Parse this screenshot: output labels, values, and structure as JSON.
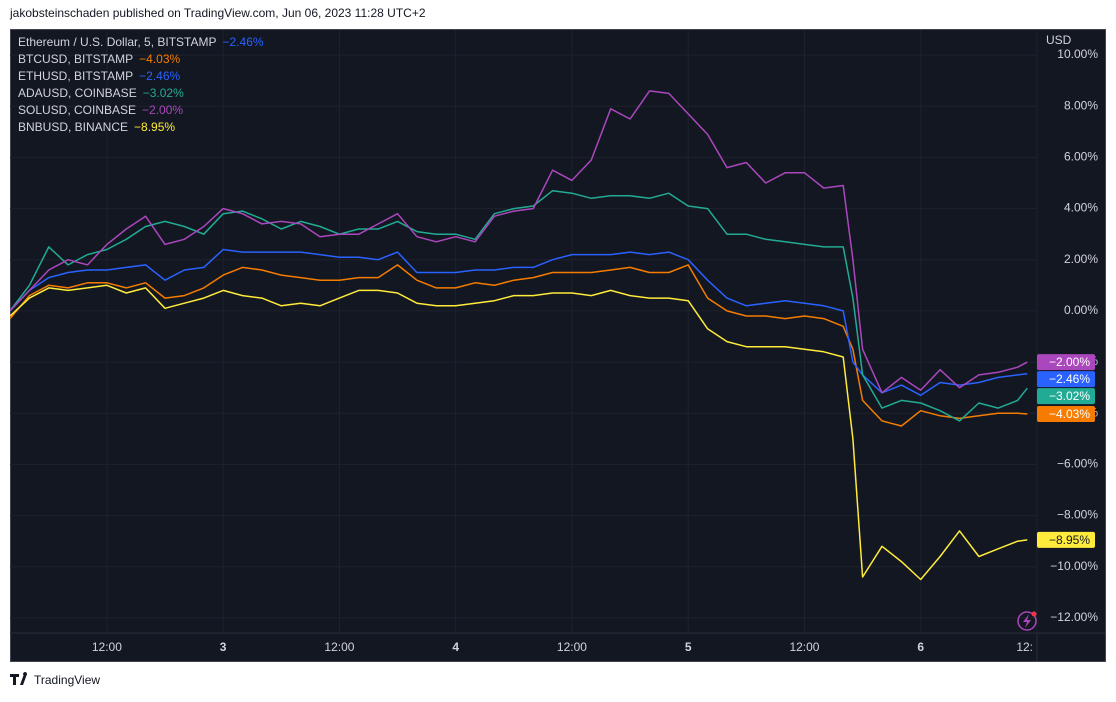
{
  "header": {
    "published": "jakobsteinschaden published on TradingView.com, Jun 06, 2023 11:28 UTC+2",
    "brand": "TradingView"
  },
  "chart_data": {
    "type": "line",
    "symbol": {
      "name": "Ethereum / U.S. Dollar, 5, BITSTAMP",
      "change_label": "−2.46%"
    },
    "y_unit": "USD",
    "x": [
      2,
      4,
      6,
      8,
      10,
      12,
      14,
      16,
      18,
      20,
      22,
      24,
      26,
      28,
      30,
      32,
      34,
      36,
      38,
      40,
      42,
      44,
      46,
      48,
      50,
      52,
      54,
      56,
      58,
      60,
      62,
      64,
      66,
      68,
      70,
      72,
      74,
      76,
      78,
      80,
      82,
      84,
      86,
      88,
      89,
      90,
      92,
      94,
      96,
      98,
      100,
      102,
      104,
      106,
      107
    ],
    "xlim": [
      2,
      108
    ],
    "xticks": [
      {
        "value": 12,
        "label": "12:00"
      },
      {
        "value": 24,
        "label": "3"
      },
      {
        "value": 36,
        "label": "12:00"
      },
      {
        "value": 48,
        "label": "4"
      },
      {
        "value": 60,
        "label": "12:00"
      },
      {
        "value": 72,
        "label": "5"
      },
      {
        "value": 84,
        "label": "12:00"
      },
      {
        "value": 96,
        "label": "6"
      },
      {
        "value": 108,
        "label": "12:"
      }
    ],
    "ylim": [
      -12.59,
      10.98
    ],
    "yticks": [
      {
        "value": 10,
        "label": "10.00%"
      },
      {
        "value": 8,
        "label": "8.00%"
      },
      {
        "value": 6,
        "label": "6.00%"
      },
      {
        "value": 4,
        "label": "4.00%"
      },
      {
        "value": 2,
        "label": "2.00%"
      },
      {
        "value": 0,
        "label": "0.00%"
      },
      {
        "value": -2,
        "label": "−2.00%"
      },
      {
        "value": -4,
        "label": "−4.00%"
      },
      {
        "value": -6,
        "label": "−6.00%"
      },
      {
        "value": -8,
        "label": "−8.00%"
      },
      {
        "value": -10,
        "label": "−10.00%"
      },
      {
        "value": -12,
        "label": "−12.00%"
      }
    ],
    "grid": true,
    "series": [
      {
        "name": "BTCUSD, BITSTAMP",
        "color": "#f57c00",
        "last_value": -4.03,
        "last_label": "−4.03%",
        "values": [
          -0.3,
          0.6,
          1.0,
          0.9,
          1.1,
          1.1,
          0.9,
          1.1,
          0.5,
          0.6,
          0.9,
          1.4,
          1.7,
          1.6,
          1.4,
          1.3,
          1.2,
          1.2,
          1.3,
          1.3,
          1.8,
          1.2,
          0.9,
          0.9,
          1.1,
          1.0,
          1.2,
          1.3,
          1.5,
          1.5,
          1.5,
          1.6,
          1.7,
          1.5,
          1.5,
          1.8,
          0.5,
          0.0,
          -0.2,
          -0.2,
          -0.3,
          -0.2,
          -0.3,
          -0.6,
          -1.5,
          -3.5,
          -4.3,
          -4.5,
          -3.9,
          -4.1,
          -4.2,
          -4.1,
          -4.0,
          -4.0,
          -4.03
        ]
      },
      {
        "name": "ETHUSD, BITSTAMP",
        "color": "#2962ff",
        "last_value": -2.46,
        "last_label": "−2.46%",
        "values": [
          0,
          0.8,
          1.3,
          1.5,
          1.6,
          1.6,
          1.7,
          1.8,
          1.2,
          1.6,
          1.7,
          2.4,
          2.3,
          2.3,
          2.3,
          2.3,
          2.2,
          2.1,
          2.1,
          2.0,
          2.3,
          1.5,
          1.5,
          1.5,
          1.6,
          1.6,
          1.7,
          1.7,
          2.0,
          2.2,
          2.2,
          2.2,
          2.3,
          2.2,
          2.3,
          2.0,
          1.2,
          0.5,
          0.2,
          0.3,
          0.4,
          0.3,
          0.2,
          0.0,
          -2.0,
          -2.5,
          -3.2,
          -2.9,
          -3.3,
          -2.8,
          -2.9,
          -2.8,
          -2.6,
          -2.5,
          -2.46
        ]
      },
      {
        "name": "ADAUSD, COINBASE",
        "color": "#22ab94",
        "last_value": -3.02,
        "last_label": "−3.02%",
        "values": [
          0,
          1.0,
          2.5,
          1.8,
          2.2,
          2.4,
          2.8,
          3.3,
          3.5,
          3.3,
          3.0,
          3.8,
          3.9,
          3.6,
          3.2,
          3.5,
          3.3,
          3.0,
          3.2,
          3.2,
          3.5,
          3.1,
          3.0,
          3.0,
          2.8,
          3.8,
          4.0,
          4.1,
          4.7,
          4.6,
          4.4,
          4.5,
          4.5,
          4.4,
          4.6,
          4.1,
          4.0,
          3.0,
          3.0,
          2.8,
          2.7,
          2.6,
          2.5,
          2.5,
          0.5,
          -2.5,
          -3.8,
          -3.5,
          -3.6,
          -3.9,
          -4.3,
          -3.6,
          -3.8,
          -3.5,
          -3.02
        ]
      },
      {
        "name": "SOLUSD, COINBASE",
        "color": "#ab47bc",
        "last_value": -2.0,
        "last_label": "−2.00%",
        "values": [
          0,
          0.8,
          1.6,
          2.0,
          1.8,
          2.6,
          3.2,
          3.7,
          2.6,
          2.8,
          3.3,
          4.0,
          3.8,
          3.4,
          3.5,
          3.4,
          2.9,
          3.0,
          3.0,
          3.4,
          3.8,
          2.9,
          2.7,
          2.9,
          2.7,
          3.7,
          3.9,
          4.0,
          5.5,
          5.1,
          5.9,
          7.9,
          7.5,
          8.6,
          8.5,
          7.7,
          6.9,
          5.6,
          5.8,
          5.0,
          5.4,
          5.4,
          4.8,
          4.9,
          2.0,
          -1.5,
          -3.2,
          -2.6,
          -3.1,
          -2.3,
          -3.0,
          -2.5,
          -2.4,
          -2.2,
          -2.0
        ]
      },
      {
        "name": "BNBUSD, BINANCE",
        "color": "#ffeb3b",
        "last_value": -8.95,
        "last_label": "−8.95%",
        "values": [
          -0.2,
          0.5,
          0.9,
          0.8,
          0.9,
          1.0,
          0.7,
          0.9,
          0.1,
          0.3,
          0.5,
          0.8,
          0.6,
          0.5,
          0.2,
          0.3,
          0.2,
          0.5,
          0.8,
          0.8,
          0.7,
          0.3,
          0.2,
          0.2,
          0.3,
          0.4,
          0.6,
          0.6,
          0.7,
          0.7,
          0.6,
          0.8,
          0.6,
          0.5,
          0.5,
          0.4,
          -0.7,
          -1.2,
          -1.4,
          -1.4,
          -1.4,
          -1.5,
          -1.6,
          -1.8,
          -5.0,
          -10.4,
          -9.2,
          -9.8,
          -10.5,
          -9.6,
          -8.6,
          -9.6,
          -9.3,
          -9.0,
          -8.95
        ]
      }
    ]
  }
}
